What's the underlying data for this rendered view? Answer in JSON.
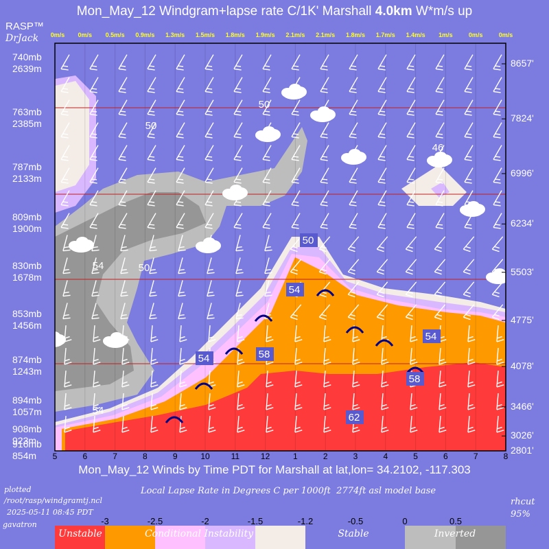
{
  "header": {
    "title_prefix": "Mon_May_12 Windgram+lapse rate C/1K'  Marshall ",
    "title_bold": "4.0km",
    "title_suffix": "  W*m/s up",
    "brand": "RASP™",
    "brand_author": "DrJack"
  },
  "wstar_labels": [
    "0m/s",
    "0m/s",
    "0.5m/s",
    "0.9m/s",
    "1.3m/s",
    "1.5m/s",
    "1.8m/s",
    "1.9m/s",
    "2.1m/s",
    "2.1m/s",
    "1.8m/s",
    "1.7m/s",
    "1.4m/s",
    "1m/s",
    "0m/s",
    "0m/s"
  ],
  "levels_left": [
    {
      "mb": "740mb",
      "m": "2639m"
    },
    {
      "mb": "763mb",
      "m": "2385m"
    },
    {
      "mb": "787mb",
      "m": "2133m"
    },
    {
      "mb": "809mb",
      "m": "1900m"
    },
    {
      "mb": "830mb",
      "m": "1678m"
    },
    {
      "mb": "853mb",
      "m": "1456m"
    },
    {
      "mb": "874mb",
      "m": "1243m"
    },
    {
      "mb": "894mb",
      "m": "1057m"
    },
    {
      "mb": "908mb",
      "m": "923m"
    },
    {
      "mb": "916mb",
      "m": "854m"
    }
  ],
  "levels_right": [
    "8657'",
    "7824'",
    "6996'",
    "6234'",
    "5503'",
    "4775'",
    "4078'",
    "3466'",
    "3026'",
    "2801'"
  ],
  "x_ticks": [
    "5",
    "6",
    "7",
    "8",
    "9",
    "10",
    "11",
    "12",
    "1",
    "2",
    "3",
    "4",
    "5",
    "6",
    "7",
    "8"
  ],
  "x_axis_label": "Mon_May_12 Winds by Time PDT for Marshall at lat,lon= 34.2102, -117.303",
  "footer": {
    "plotted": "plotted",
    "path": "/root/rasp/windgramtj.ncl",
    "timestamp": "2025-05-11 08:45 PDT",
    "site": "gavatron",
    "subtitle": "Local Lapse Rate in Degrees C per 1000ft  2774ft asl model base",
    "rhcut_label": "rhcut",
    "rhcut_value": "95%"
  },
  "colorbar": {
    "ticks": [
      "-3",
      "-2.5",
      "-2",
      "-1.5",
      "-1.2",
      "-0.5",
      "0",
      "0.5"
    ],
    "labels": [
      "Unstable",
      "Conditional Instability",
      "Stable",
      "Inverted"
    ],
    "colors": [
      "#ff3a3a",
      "#ff9900",
      "#ffc0ff",
      "#d9b8ff",
      "#f4ece6",
      "#7b7be0",
      "#bdbdbd",
      "#969696"
    ]
  },
  "contour_labels": [
    "50",
    "50",
    "46",
    "50",
    "54",
    "50",
    "54",
    "58",
    "54",
    "54",
    "58",
    "54",
    "62"
  ],
  "chart_data": {
    "type": "heatmap",
    "title": "Mon_May_12 Windgram+lapse rate C/1K'  Marshall 4.0km  W*m/s up",
    "x": [
      "5",
      "6",
      "7",
      "8",
      "9",
      "10",
      "11",
      "12",
      "1",
      "2",
      "3",
      "4",
      "5",
      "6",
      "7",
      "8"
    ],
    "xlabel": "Mon_May_12 Winds by Time PDT for Marshall at lat,lon= 34.2102, -117.303",
    "y_levels_m": [
      2639,
      2385,
      2133,
      1900,
      1678,
      1456,
      1243,
      1057,
      923,
      854
    ],
    "y_levels_ft": [
      8657,
      7824,
      6996,
      6234,
      5503,
      4775,
      4078,
      3466,
      3026,
      2801
    ],
    "wstar_ms": [
      0,
      0,
      0.5,
      0.9,
      1.3,
      1.5,
      1.8,
      1.9,
      2.1,
      2.1,
      1.8,
      1.7,
      1.4,
      1,
      0,
      0
    ],
    "colorbar_levels": [
      -3,
      -2.5,
      -2,
      -1.5,
      -1.2,
      -0.5,
      0,
      0.5
    ],
    "colorbar_categories": [
      "Unstable",
      "Conditional Instability",
      "Stable",
      "Inverted"
    ],
    "rhcut": "95%"
  }
}
